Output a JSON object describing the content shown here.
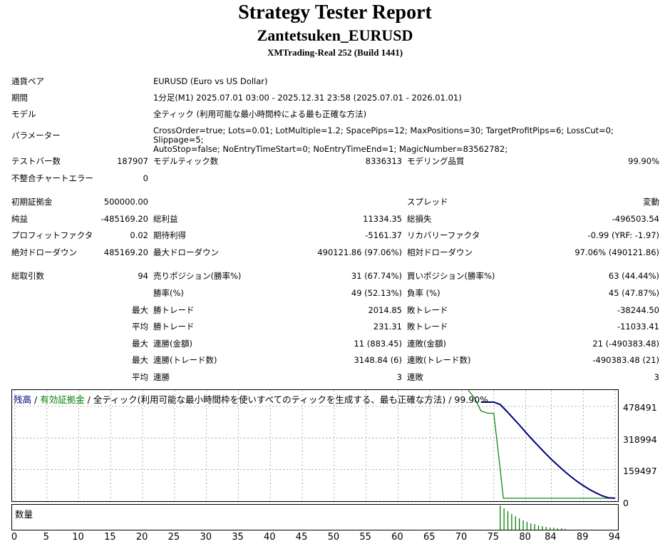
{
  "report": {
    "title": "Strategy Tester Report",
    "ea_name": "Zantetsuken_EURUSD",
    "server": "XMTrading-Real 252 (Build 1441)"
  },
  "info": {
    "symbol_label": "通貨ペア",
    "symbol": "EURUSD (Euro vs US Dollar)",
    "period_label": "期間",
    "period": "1分足(M1) 2025.07.01 03:00 - 2025.12.31 23:58 (2025.07.01 - 2026.01.01)",
    "model_label": "モデル",
    "model": "全ティック (利用可能な最小時間枠による最も正確な方法)",
    "params_label": "パラメーター",
    "params_line1": "CrossOrder=true; Lots=0.01; LotMultiple=1.2; SpacePips=12; MaxPositions=30; TargetProfitPips=6; LossCut=0; Slippage=5;",
    "params_line2": "AutoStop=false; NoEntryTimeStart=0; NoEntryTimeEnd=1; MagicNumber=83562782;"
  },
  "stats": {
    "bars_label": "テストバー数",
    "bars": "187907",
    "ticks_label": "モデルティック数",
    "ticks": "8336313",
    "quality_label": "モデリング品質",
    "quality": "99.90%",
    "mismatch_label": "不整合チャートエラー",
    "mismatch": "0",
    "deposit_label": "初期証拠金",
    "deposit": "500000.00",
    "spread_label": "スプレッド",
    "spread": "変動",
    "net_label": "純益",
    "net": "-485169.20",
    "gross_profit_label": "総利益",
    "gross_profit": "11334.35",
    "gross_loss_label": "総損失",
    "gross_loss": "-496503.54",
    "pf_label": "プロフィットファクタ",
    "pf": "0.02",
    "expected_label": "期待利得",
    "expected": "-5161.37",
    "recovery_label": "リカバリーファクタ",
    "recovery": "-0.99 (YRF: -1.97)",
    "abs_dd_label": "絶対ドローダウン",
    "abs_dd": "485169.20",
    "max_dd_label": "最大ドローダウン",
    "max_dd": "490121.86 (97.06%)",
    "rel_dd_label": "相対ドローダウン",
    "rel_dd": "97.06% (490121.86)",
    "trades_label": "総取引数",
    "trades": "94",
    "short_label": "売りポジション(勝率%)",
    "short": "31 (67.74%)",
    "long_label": "買いポジション(勝率%)",
    "long": "63 (44.44%)",
    "win_rate_label": "勝率(%)",
    "win_rate": "49 (52.13%)",
    "loss_rate_label": "負率 (%)",
    "loss_rate": "45 (47.87%)",
    "max_label": "最大",
    "avg_label": "平均",
    "win_trade_label": "勝トレード",
    "loss_trade_label": "敗トレード",
    "max_win": "2014.85",
    "max_loss": "-38244.50",
    "avg_win": "231.31",
    "avg_loss": "-11033.41",
    "cons_win_amt_label": "連勝(金額)",
    "cons_win_amt": "11 (883.45)",
    "cons_loss_amt_label": "連敗(金額)",
    "cons_loss_amt": "21 (-490383.48)",
    "cons_win_cnt_label": "連勝(トレード数)",
    "cons_win_cnt": "3148.84 (6)",
    "cons_loss_cnt_label": "連敗(トレード数)",
    "cons_loss_cnt": "-490383.48 (21)",
    "cons_win_label": "連勝",
    "cons_win": "3",
    "cons_loss_label": "連敗",
    "cons_loss": "3"
  },
  "chart_labels": {
    "legend_balance": "残高",
    "legend_sep1": " / ",
    "legend_equity": "有効証拠金",
    "legend_rest": " / 全ティック(利用可能な最小時間枠を使いすべてのティックを生成する、最も正確な方法) / 99.90%",
    "volume_label": "数量",
    "y_ticks": [
      "478491",
      "318994",
      "159497",
      "0"
    ]
  },
  "colors": {
    "balance": "#00007f",
    "equity": "#008000",
    "volume": "#008000"
  },
  "chart_data": {
    "type": "line",
    "x_ticks": [
      0,
      5,
      10,
      15,
      20,
      25,
      30,
      35,
      40,
      45,
      50,
      55,
      60,
      65,
      70,
      75,
      80,
      84,
      89,
      94
    ],
    "y_ticks": [
      478491,
      318994,
      159497,
      0
    ],
    "series": [
      {
        "name": "残高",
        "x": [
          73,
          75,
          76,
          77,
          78,
          79,
          80,
          81,
          82,
          83,
          84,
          85,
          86,
          87,
          88,
          89,
          90,
          91,
          92,
          93,
          94
        ],
        "y": [
          500000,
          500000,
          488000,
          455000,
          420000,
          385000,
          348000,
          312000,
          278000,
          244000,
          212000,
          182000,
          153000,
          126000,
          101000,
          79000,
          59000,
          42000,
          27000,
          17000,
          15000
        ]
      },
      {
        "name": "有効証拠金",
        "x": [
          71,
          72,
          73,
          74,
          75,
          76,
          76.5,
          77,
          94
        ],
        "y": [
          560000,
          520000,
          455000,
          445000,
          443000,
          160000,
          15000,
          15000,
          15000
        ]
      }
    ],
    "volume": {
      "x": [
        76,
        76.6,
        77.2,
        77.8,
        78.4,
        79,
        79.6,
        80.2,
        80.8,
        81.4,
        82,
        82.6,
        83.2,
        83.8,
        84.4,
        85,
        85.6,
        86.2
      ],
      "values": [
        34,
        30,
        26,
        22,
        19,
        16,
        13,
        11,
        9,
        8,
        6,
        5,
        4,
        3,
        3,
        2,
        2,
        1
      ]
    }
  }
}
